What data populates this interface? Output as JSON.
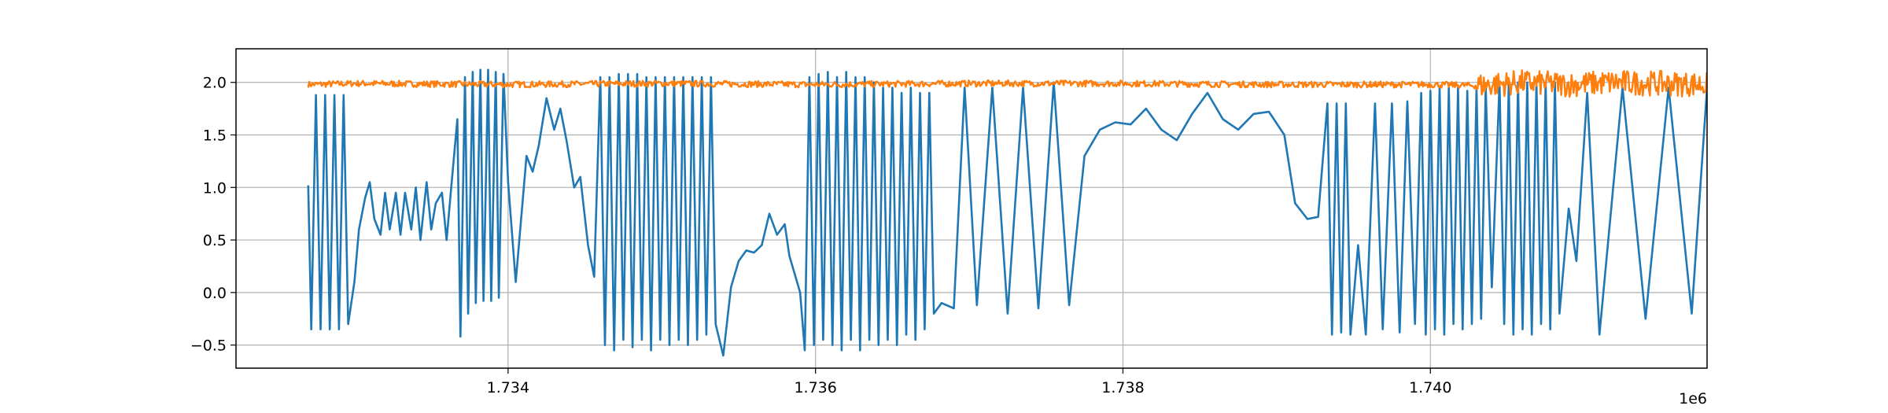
{
  "chart_data": {
    "type": "line",
    "title": "",
    "xlabel": "",
    "ylabel": "",
    "x_offset_label": "1e6",
    "xlim": [
      1.73223,
      1.7418
    ],
    "ylim": [
      -0.72,
      2.32
    ],
    "grid": true,
    "legend": "none",
    "x_ticks": [
      1.734,
      1.736,
      1.738,
      1.74
    ],
    "x_tick_labels": [
      "1.734",
      "1.736",
      "1.738",
      "1.740"
    ],
    "y_ticks": [
      -0.5,
      0.0,
      0.5,
      1.0,
      1.5,
      2.0
    ],
    "y_tick_labels": [
      "−0.5",
      "0.0",
      "0.5",
      "1.0",
      "1.5",
      "2.0"
    ],
    "series": [
      {
        "color": "#1f77b4",
        "shape": "oscillating signal, values in x-units of 1e6",
        "points": [
          [
            1.7327,
            1.02
          ],
          [
            1.73272,
            -0.35
          ],
          [
            1.73275,
            1.88
          ],
          [
            1.73278,
            -0.35
          ],
          [
            1.73281,
            1.88
          ],
          [
            1.73284,
            -0.35
          ],
          [
            1.73287,
            1.88
          ],
          [
            1.7329,
            -0.35
          ],
          [
            1.73293,
            1.88
          ],
          [
            1.73296,
            -0.3
          ],
          [
            1.733,
            0.1
          ],
          [
            1.73303,
            0.6
          ],
          [
            1.73307,
            0.9
          ],
          [
            1.7331,
            1.05
          ],
          [
            1.73313,
            0.7
          ],
          [
            1.73317,
            0.55
          ],
          [
            1.7332,
            0.95
          ],
          [
            1.73323,
            0.6
          ],
          [
            1.73327,
            0.95
          ],
          [
            1.7333,
            0.55
          ],
          [
            1.73333,
            0.95
          ],
          [
            1.73337,
            0.6
          ],
          [
            1.7334,
            1.0
          ],
          [
            1.73343,
            0.5
          ],
          [
            1.73347,
            1.05
          ],
          [
            1.7335,
            0.6
          ],
          [
            1.73353,
            0.85
          ],
          [
            1.73357,
            0.95
          ],
          [
            1.7336,
            0.5
          ],
          [
            1.73363,
            1.0
          ],
          [
            1.73367,
            1.65
          ],
          [
            1.73369,
            -0.42
          ],
          [
            1.73372,
            2.05
          ],
          [
            1.73374,
            -0.2
          ],
          [
            1.73377,
            2.1
          ],
          [
            1.73379,
            -0.1
          ],
          [
            1.73382,
            2.12
          ],
          [
            1.73384,
            -0.08
          ],
          [
            1.73387,
            2.12
          ],
          [
            1.73389,
            -0.08
          ],
          [
            1.73392,
            2.1
          ],
          [
            1.73394,
            -0.05
          ],
          [
            1.73397,
            2.08
          ],
          [
            1.734,
            1.05
          ],
          [
            1.73405,
            0.1
          ],
          [
            1.73412,
            1.3
          ],
          [
            1.73416,
            1.15
          ],
          [
            1.7342,
            1.4
          ],
          [
            1.73425,
            1.85
          ],
          [
            1.7343,
            1.55
          ],
          [
            1.73434,
            1.75
          ],
          [
            1.73438,
            1.45
          ],
          [
            1.73443,
            1.0
          ],
          [
            1.73447,
            1.1
          ],
          [
            1.73452,
            0.45
          ],
          [
            1.73456,
            0.15
          ],
          [
            1.7346,
            2.05
          ],
          [
            1.73463,
            -0.5
          ],
          [
            1.73466,
            2.05
          ],
          [
            1.73469,
            -0.55
          ],
          [
            1.73472,
            2.08
          ],
          [
            1.73475,
            -0.45
          ],
          [
            1.73478,
            2.08
          ],
          [
            1.73481,
            -0.52
          ],
          [
            1.73484,
            2.08
          ],
          [
            1.73487,
            -0.45
          ],
          [
            1.7349,
            2.05
          ],
          [
            1.73493,
            -0.55
          ],
          [
            1.73496,
            2.05
          ],
          [
            1.73499,
            -0.45
          ],
          [
            1.73502,
            2.05
          ],
          [
            1.73505,
            -0.5
          ],
          [
            1.73508,
            2.05
          ],
          [
            1.73511,
            -0.45
          ],
          [
            1.73514,
            2.05
          ],
          [
            1.73517,
            -0.5
          ],
          [
            1.7352,
            2.05
          ],
          [
            1.73523,
            -0.45
          ],
          [
            1.73526,
            2.05
          ],
          [
            1.73529,
            -0.4
          ],
          [
            1.73532,
            2.05
          ],
          [
            1.73535,
            -0.3
          ],
          [
            1.7354,
            -0.6
          ],
          [
            1.73545,
            0.05
          ],
          [
            1.7355,
            0.3
          ],
          [
            1.73555,
            0.4
          ],
          [
            1.7356,
            0.38
          ],
          [
            1.73565,
            0.45
          ],
          [
            1.7357,
            0.75
          ],
          [
            1.73575,
            0.55
          ],
          [
            1.7358,
            0.65
          ],
          [
            1.73583,
            0.35
          ],
          [
            1.73586,
            0.2
          ],
          [
            1.7359,
            0.0
          ],
          [
            1.73593,
            -0.55
          ],
          [
            1.73596,
            2.05
          ],
          [
            1.73599,
            -0.5
          ],
          [
            1.73602,
            2.08
          ],
          [
            1.73605,
            -0.45
          ],
          [
            1.73608,
            2.1
          ],
          [
            1.73611,
            -0.5
          ],
          [
            1.73614,
            2.05
          ],
          [
            1.73617,
            -0.55
          ],
          [
            1.7362,
            2.1
          ],
          [
            1.73623,
            -0.45
          ],
          [
            1.73626,
            2.05
          ],
          [
            1.73629,
            -0.55
          ],
          [
            1.73632,
            2.05
          ],
          [
            1.73635,
            -0.45
          ],
          [
            1.73638,
            2.0
          ],
          [
            1.73641,
            -0.5
          ],
          [
            1.73644,
            1.95
          ],
          [
            1.73647,
            -0.45
          ],
          [
            1.7365,
            1.95
          ],
          [
            1.73653,
            -0.5
          ],
          [
            1.73656,
            1.9
          ],
          [
            1.73659,
            -0.4
          ],
          [
            1.73662,
            1.95
          ],
          [
            1.73665,
            -0.45
          ],
          [
            1.73668,
            1.9
          ],
          [
            1.73671,
            -0.35
          ],
          [
            1.73674,
            1.9
          ],
          [
            1.73677,
            -0.2
          ],
          [
            1.73682,
            -0.1
          ],
          [
            1.7369,
            -0.15
          ],
          [
            1.73697,
            1.95
          ],
          [
            1.73705,
            -0.12
          ],
          [
            1.73715,
            1.95
          ],
          [
            1.73725,
            -0.2
          ],
          [
            1.73735,
            1.95
          ],
          [
            1.73745,
            -0.15
          ],
          [
            1.73755,
            2.0
          ],
          [
            1.73765,
            -0.12
          ],
          [
            1.73775,
            1.3
          ],
          [
            1.73785,
            1.55
          ],
          [
            1.73795,
            1.62
          ],
          [
            1.73805,
            1.6
          ],
          [
            1.73815,
            1.75
          ],
          [
            1.73825,
            1.55
          ],
          [
            1.73835,
            1.45
          ],
          [
            1.73845,
            1.7
          ],
          [
            1.73855,
            1.9
          ],
          [
            1.73865,
            1.65
          ],
          [
            1.73875,
            1.55
          ],
          [
            1.73885,
            1.7
          ],
          [
            1.73895,
            1.72
          ],
          [
            1.73905,
            1.5
          ],
          [
            1.73912,
            0.85
          ],
          [
            1.7392,
            0.7
          ],
          [
            1.73927,
            0.72
          ],
          [
            1.73933,
            1.8
          ],
          [
            1.73936,
            -0.4
          ],
          [
            1.73939,
            1.8
          ],
          [
            1.73942,
            -0.38
          ],
          [
            1.73945,
            1.8
          ],
          [
            1.73948,
            -0.4
          ],
          [
            1.73953,
            0.45
          ],
          [
            1.73958,
            -0.4
          ],
          [
            1.73964,
            1.8
          ],
          [
            1.73969,
            -0.35
          ],
          [
            1.73975,
            1.8
          ],
          [
            1.7398,
            -0.38
          ],
          [
            1.73985,
            1.82
          ],
          [
            1.7399,
            -0.3
          ],
          [
            1.73994,
            1.9
          ],
          [
            1.73997,
            -0.4
          ],
          [
            1.74,
            1.92
          ],
          [
            1.74003,
            -0.35
          ],
          [
            1.74006,
            1.95
          ],
          [
            1.74009,
            -0.4
          ],
          [
            1.74012,
            1.95
          ],
          [
            1.74015,
            -0.3
          ],
          [
            1.74018,
            1.95
          ],
          [
            1.74021,
            -0.35
          ],
          [
            1.74024,
            1.92
          ],
          [
            1.74027,
            -0.3
          ],
          [
            1.7403,
            1.95
          ],
          [
            1.74033,
            -0.25
          ],
          [
            1.74036,
            1.95
          ],
          [
            1.7404,
            0.05
          ],
          [
            1.74045,
            2.0
          ],
          [
            1.74048,
            -0.3
          ],
          [
            1.74051,
            2.0
          ],
          [
            1.74054,
            -0.4
          ],
          [
            1.74057,
            2.0
          ],
          [
            1.7406,
            -0.35
          ],
          [
            1.74063,
            2.0
          ],
          [
            1.74066,
            -0.4
          ],
          [
            1.74069,
            2.0
          ],
          [
            1.74072,
            -0.3
          ],
          [
            1.74075,
            2.0
          ],
          [
            1.74078,
            -0.35
          ],
          [
            1.74081,
            2.0
          ],
          [
            1.74084,
            -0.2
          ],
          [
            1.7409,
            0.8
          ],
          [
            1.74095,
            0.3
          ],
          [
            1.74102,
            1.9
          ],
          [
            1.7411,
            -0.4
          ],
          [
            1.74125,
            1.95
          ],
          [
            1.7414,
            -0.25
          ],
          [
            1.74155,
            1.95
          ],
          [
            1.7417,
            -0.2
          ],
          [
            1.7418,
            1.95
          ],
          [
            1.74185,
            -0.15
          ],
          [
            1.7419,
            1.98
          ],
          [
            1.742,
            0.45
          ],
          [
            1.7421,
            0.13
          ]
        ]
      },
      {
        "color": "#ff7f0e",
        "shape": "noisy band near 2.0, ramping down at the end",
        "points": [
          [
            1.7327,
            1.98
          ],
          [
            1.733,
            1.99
          ],
          [
            1.734,
            1.98
          ],
          [
            1.735,
            1.99
          ],
          [
            1.736,
            1.98
          ],
          [
            1.737,
            1.99
          ],
          [
            1.738,
            1.99
          ],
          [
            1.739,
            1.98
          ],
          [
            1.74,
            1.98
          ],
          [
            1.7403,
            1.97
          ],
          [
            1.7406,
            2.0
          ],
          [
            1.7409,
            1.98
          ],
          [
            1.7412,
            2.0
          ],
          [
            1.7415,
            1.99
          ],
          [
            1.7418,
            1.98
          ],
          [
            1.7419,
            1.95
          ],
          [
            1.742,
            1.8
          ],
          [
            1.7421,
            1.7
          ]
        ],
        "noise_amplitude": 0.03,
        "noise_amplitude_oscillating_region": 0.12,
        "oscillating_region": [
          1.7403,
          1.7418
        ]
      }
    ]
  }
}
